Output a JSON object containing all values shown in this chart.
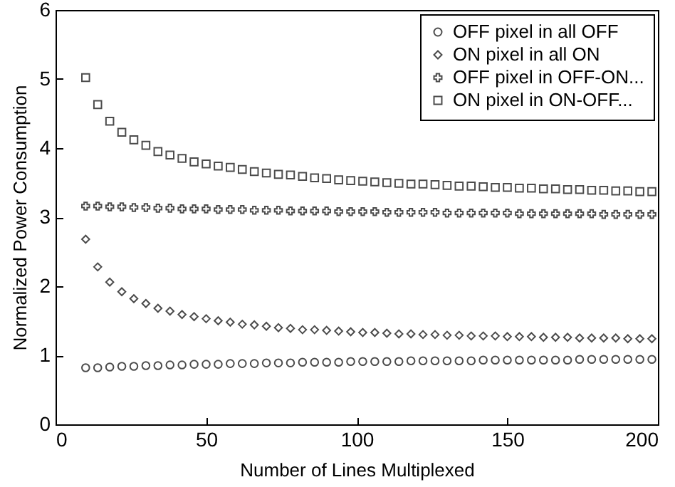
{
  "chart_data": {
    "type": "scatter",
    "xlabel": "Number of Lines Multiplexed",
    "ylabel": "Normalized Power Consumption",
    "x": [
      10,
      14,
      18,
      22,
      26,
      30,
      34,
      38,
      42,
      46,
      50,
      54,
      58,
      62,
      66,
      70,
      74,
      78,
      82,
      86,
      90,
      94,
      98,
      102,
      106,
      110,
      114,
      118,
      122,
      126,
      130,
      134,
      138,
      142,
      146,
      150,
      154,
      158,
      162,
      166,
      170,
      174,
      178,
      182,
      186,
      190,
      194,
      198
    ],
    "series": [
      {
        "name": "OFF pixel in all OFF",
        "color": "#000000",
        "marker": "circle",
        "values": [
          0.82,
          0.82,
          0.83,
          0.84,
          0.84,
          0.85,
          0.85,
          0.86,
          0.86,
          0.87,
          0.87,
          0.87,
          0.88,
          0.88,
          0.88,
          0.89,
          0.89,
          0.89,
          0.9,
          0.9,
          0.9,
          0.9,
          0.91,
          0.91,
          0.91,
          0.91,
          0.91,
          0.92,
          0.92,
          0.92,
          0.92,
          0.92,
          0.92,
          0.93,
          0.93,
          0.93,
          0.93,
          0.93,
          0.93,
          0.93,
          0.93,
          0.94,
          0.94,
          0.94,
          0.94,
          0.94,
          0.94,
          0.94
        ]
      },
      {
        "name": "ON pixel in all ON",
        "color": "#000000",
        "marker": "diamond",
        "values": [
          2.68,
          2.28,
          2.06,
          1.92,
          1.82,
          1.75,
          1.68,
          1.64,
          1.59,
          1.56,
          1.53,
          1.5,
          1.48,
          1.45,
          1.44,
          1.42,
          1.4,
          1.39,
          1.37,
          1.37,
          1.36,
          1.35,
          1.34,
          1.33,
          1.33,
          1.32,
          1.31,
          1.31,
          1.3,
          1.3,
          1.29,
          1.29,
          1.28,
          1.28,
          1.28,
          1.27,
          1.27,
          1.27,
          1.26,
          1.26,
          1.26,
          1.25,
          1.25,
          1.25,
          1.25,
          1.24,
          1.24,
          1.24
        ]
      },
      {
        "name": "OFF pixel in OFF-ON...",
        "color": "#000000",
        "marker": "cross",
        "values": [
          3.16,
          3.16,
          3.15,
          3.15,
          3.14,
          3.14,
          3.13,
          3.13,
          3.12,
          3.12,
          3.12,
          3.11,
          3.11,
          3.11,
          3.1,
          3.1,
          3.1,
          3.09,
          3.09,
          3.09,
          3.09,
          3.08,
          3.08,
          3.08,
          3.08,
          3.07,
          3.07,
          3.07,
          3.07,
          3.07,
          3.06,
          3.06,
          3.06,
          3.06,
          3.06,
          3.06,
          3.05,
          3.05,
          3.05,
          3.05,
          3.05,
          3.05,
          3.05,
          3.04,
          3.04,
          3.04,
          3.04,
          3.04
        ]
      },
      {
        "name": "ON pixel in ON-OFF...",
        "color": "#000000",
        "marker": "square",
        "values": [
          5.02,
          4.63,
          4.39,
          4.23,
          4.12,
          4.04,
          3.95,
          3.9,
          3.85,
          3.8,
          3.77,
          3.74,
          3.72,
          3.69,
          3.66,
          3.64,
          3.62,
          3.61,
          3.59,
          3.57,
          3.56,
          3.54,
          3.53,
          3.52,
          3.51,
          3.5,
          3.49,
          3.48,
          3.48,
          3.47,
          3.46,
          3.45,
          3.45,
          3.44,
          3.43,
          3.43,
          3.42,
          3.42,
          3.41,
          3.41,
          3.4,
          3.4,
          3.39,
          3.39,
          3.38,
          3.38,
          3.37,
          3.37
        ]
      }
    ],
    "xlim": [
      0,
      200
    ],
    "xticks": [
      0,
      50,
      100,
      150,
      200
    ],
    "ylim": [
      0,
      6
    ],
    "yticks": [
      0,
      1,
      2,
      3,
      4,
      5,
      6
    ],
    "legend": "top right"
  }
}
